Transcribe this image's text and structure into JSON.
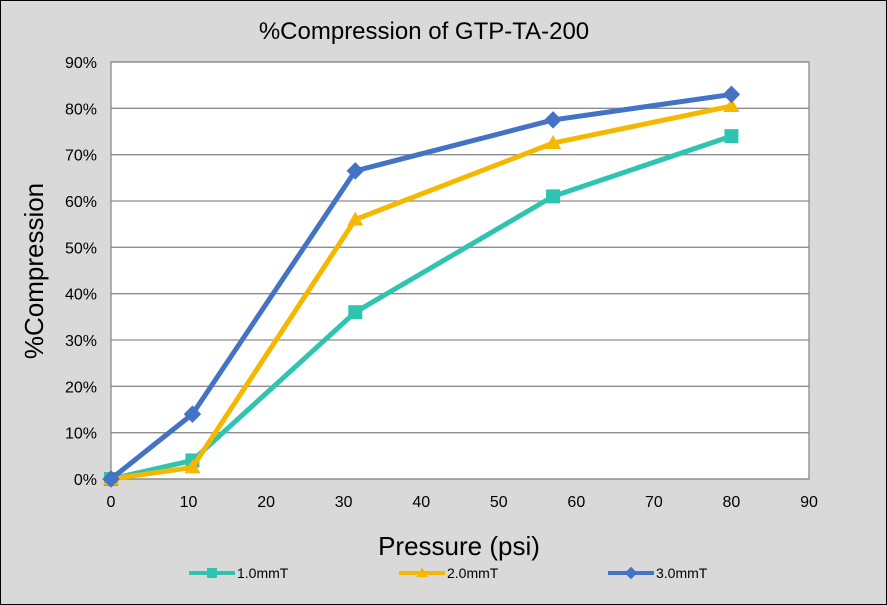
{
  "chart_data": {
    "type": "line",
    "title": "%Compression of GTP-TA-200",
    "xlabel": "Pressure (psi)",
    "ylabel": "%Compression",
    "xlim": [
      0,
      90
    ],
    "ylim": [
      0,
      90
    ],
    "x_ticks": [
      0,
      10,
      20,
      30,
      40,
      50,
      60,
      70,
      80,
      90
    ],
    "y_ticks": [
      0,
      10,
      20,
      30,
      40,
      50,
      60,
      70,
      80,
      90
    ],
    "y_tick_format": "percent",
    "grid": "horizontal",
    "legend_position": "bottom",
    "series": [
      {
        "name": "1.0mmT",
        "color": "#2ec4b0",
        "marker": "square",
        "x": [
          0,
          10.5,
          31.5,
          57,
          80
        ],
        "y": [
          0,
          4,
          36,
          61,
          74
        ]
      },
      {
        "name": "2.0mmT",
        "color": "#f5b800",
        "marker": "triangle",
        "x": [
          0,
          10.5,
          31.5,
          57,
          80
        ],
        "y": [
          0,
          2.5,
          56,
          72.5,
          80.5
        ]
      },
      {
        "name": "3.0mmT",
        "color": "#4472c4",
        "marker": "diamond",
        "x": [
          0,
          10.5,
          31.5,
          57,
          80
        ],
        "y": [
          0,
          14,
          66.5,
          77.5,
          83
        ]
      }
    ]
  }
}
